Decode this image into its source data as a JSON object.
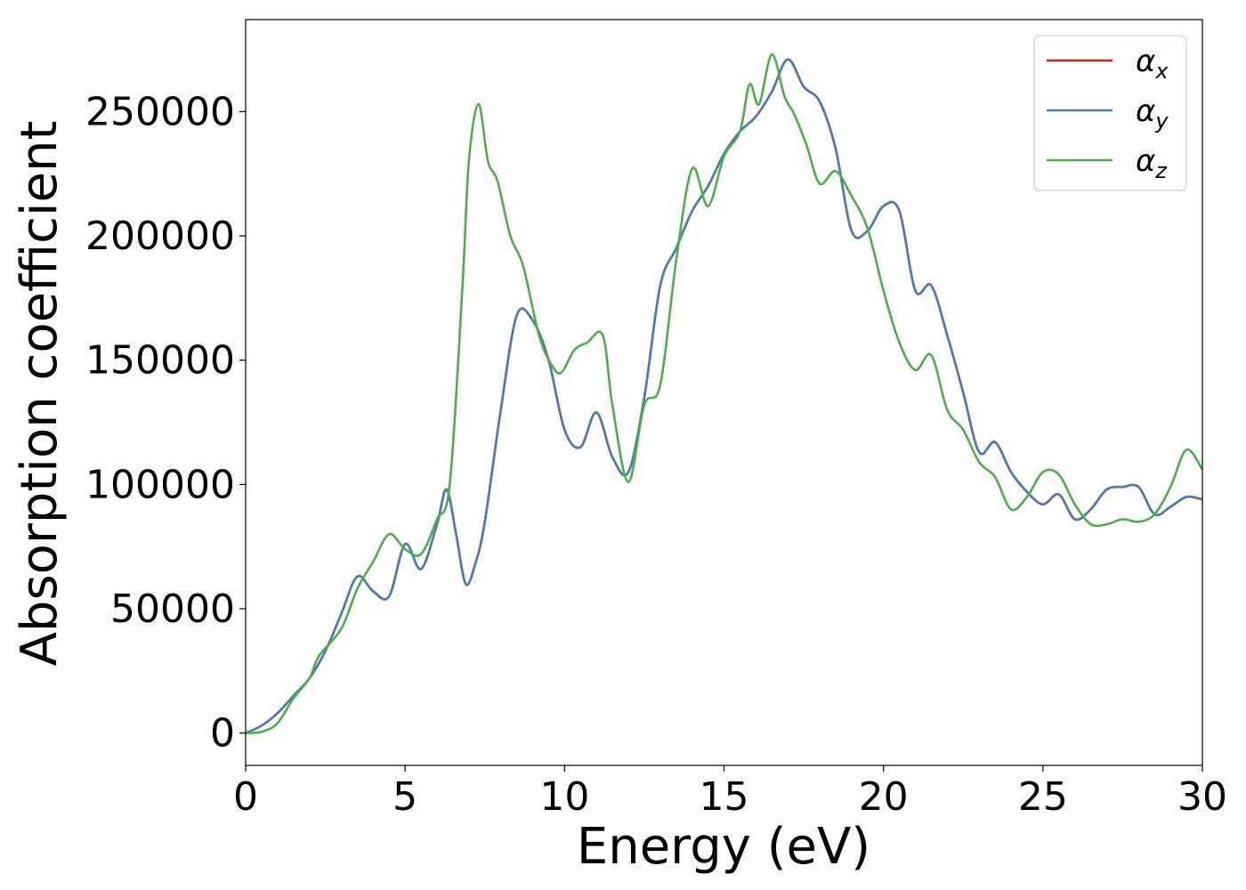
{
  "chart_data": {
    "type": "line",
    "xlabel": "Energy (eV)",
    "ylabel": "Absorption coefficient",
    "xlim": [
      0,
      30
    ],
    "ylim": [
      -13000,
      287000
    ],
    "xticks": [
      0,
      5,
      10,
      15,
      20,
      25,
      30
    ],
    "xtick_labels": [
      "0",
      "5",
      "10",
      "15",
      "20",
      "25",
      "30"
    ],
    "yticks": [
      0,
      50000,
      100000,
      150000,
      200000,
      250000
    ],
    "ytick_labels": [
      "0",
      "50000",
      "100000",
      "150000",
      "200000",
      "250000"
    ],
    "grid": false,
    "legend_position": "top-right",
    "series": [
      {
        "name": "α_x",
        "legend_base": "α",
        "legend_sub": "x",
        "color": "#e41a1c",
        "x": [
          0,
          0.5,
          1.0,
          1.5,
          2.0,
          2.5,
          3.0,
          3.5,
          4.0,
          4.5,
          5.0,
          5.5,
          6.0,
          6.3,
          6.6,
          6.9,
          7.2,
          7.5,
          8.0,
          8.5,
          9.0,
          9.5,
          10.0,
          10.5,
          11.0,
          11.5,
          12.0,
          12.5,
          13.0,
          13.5,
          14.0,
          14.5,
          15.0,
          15.5,
          16.0,
          16.5,
          17.0,
          17.5,
          18.0,
          18.5,
          19.0,
          19.5,
          20.0,
          20.5,
          21.0,
          21.5,
          22.0,
          22.5,
          23.0,
          23.5,
          24.0,
          24.5,
          25.0,
          25.5,
          26.0,
          26.5,
          27.0,
          27.5,
          28.0,
          28.5,
          29.0,
          29.5,
          30.0
        ],
        "y": [
          0,
          3000,
          8000,
          15000,
          22000,
          33000,
          48000,
          63000,
          57000,
          55000,
          76000,
          66000,
          84000,
          98000,
          80000,
          60000,
          68000,
          85000,
          130000,
          168000,
          166000,
          150000,
          122000,
          115000,
          129000,
          111000,
          105000,
          135000,
          180000,
          195000,
          210000,
          220000,
          233000,
          242000,
          248000,
          258000,
          271000,
          260000,
          254000,
          235000,
          202000,
          202000,
          212000,
          210000,
          178000,
          180000,
          160000,
          137000,
          113000,
          117000,
          105000,
          97000,
          92000,
          96000,
          86000,
          90000,
          98000,
          99000,
          99000,
          88000,
          91000,
          95000,
          94000
        ]
      },
      {
        "name": "α_y",
        "legend_base": "α",
        "legend_sub": "y",
        "color": "#4a7db3",
        "x": [
          0,
          0.5,
          1.0,
          1.5,
          2.0,
          2.5,
          3.0,
          3.5,
          4.0,
          4.5,
          5.0,
          5.5,
          6.0,
          6.3,
          6.6,
          6.9,
          7.2,
          7.5,
          8.0,
          8.5,
          9.0,
          9.5,
          10.0,
          10.5,
          11.0,
          11.5,
          12.0,
          12.5,
          13.0,
          13.5,
          14.0,
          14.5,
          15.0,
          15.5,
          16.0,
          16.5,
          17.0,
          17.5,
          18.0,
          18.5,
          19.0,
          19.5,
          20.0,
          20.5,
          21.0,
          21.5,
          22.0,
          22.5,
          23.0,
          23.5,
          24.0,
          24.5,
          25.0,
          25.5,
          26.0,
          26.5,
          27.0,
          27.5,
          28.0,
          28.5,
          29.0,
          29.5,
          30.0
        ],
        "y": [
          0,
          3000,
          8000,
          15000,
          22000,
          33000,
          48000,
          63000,
          57000,
          55000,
          76000,
          66000,
          84000,
          98000,
          80000,
          60000,
          68000,
          85000,
          130000,
          168000,
          166000,
          150000,
          122000,
          115000,
          129000,
          111000,
          105000,
          135000,
          180000,
          195000,
          210000,
          220000,
          233000,
          242000,
          248000,
          258000,
          271000,
          260000,
          254000,
          235000,
          202000,
          202000,
          212000,
          210000,
          178000,
          180000,
          160000,
          137000,
          113000,
          117000,
          105000,
          97000,
          92000,
          96000,
          86000,
          90000,
          98000,
          99000,
          99000,
          88000,
          91000,
          95000,
          94000
        ]
      },
      {
        "name": "α_z",
        "legend_base": "α",
        "legend_sub": "z",
        "color": "#4daf4a",
        "x": [
          0,
          0.5,
          1.0,
          1.5,
          2.0,
          2.3,
          3.0,
          3.5,
          4.0,
          4.5,
          5.0,
          5.5,
          6.0,
          6.4,
          6.8,
          7.0,
          7.3,
          7.6,
          7.9,
          8.3,
          8.7,
          9.2,
          9.6,
          9.9,
          10.3,
          10.7,
          11.2,
          11.5,
          12.0,
          12.5,
          13.0,
          13.5,
          14.0,
          14.5,
          15.0,
          15.5,
          15.8,
          16.1,
          16.5,
          16.9,
          17.2,
          17.6,
          18.0,
          18.5,
          19.0,
          19.5,
          20.0,
          20.5,
          21.0,
          21.5,
          22.0,
          22.5,
          23.0,
          23.5,
          24.0,
          24.5,
          25.0,
          25.5,
          26.0,
          26.5,
          27.0,
          27.5,
          28.0,
          28.5,
          29.0,
          29.5,
          30.0
        ],
        "y": [
          0,
          500,
          4000,
          14000,
          22000,
          31000,
          42000,
          58000,
          69000,
          80000,
          74000,
          72000,
          86000,
          100000,
          180000,
          230000,
          253000,
          230000,
          222000,
          200000,
          188000,
          160000,
          148000,
          145000,
          154000,
          157000,
          160000,
          132000,
          101000,
          132000,
          140000,
          190000,
          227000,
          212000,
          232000,
          242000,
          261000,
          253000,
          273000,
          256000,
          249000,
          236000,
          221000,
          226000,
          216000,
          203000,
          178000,
          157000,
          146000,
          152000,
          130000,
          122000,
          109000,
          103000,
          90000,
          95000,
          105000,
          104000,
          92000,
          84000,
          84000,
          86000,
          85000,
          88000,
          99000,
          114000,
          106000
        ]
      }
    ]
  }
}
